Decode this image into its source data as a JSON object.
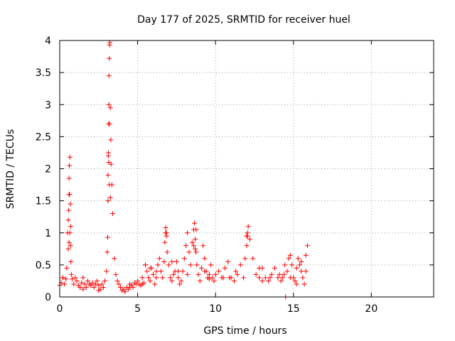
{
  "chart_data": {
    "type": "scatter",
    "title": "Day 177 of 2025, SRMTID for receiver huel",
    "xlabel": "GPS time / hours",
    "ylabel": "SRMTID / TECUs",
    "xlim": [
      0,
      24
    ],
    "ylim": [
      0,
      4
    ],
    "xticks": [
      0,
      5,
      10,
      15,
      20
    ],
    "xtick_labels": [
      "0",
      "5",
      "10",
      "15",
      "20"
    ],
    "yticks": [
      0,
      0.5,
      1,
      1.5,
      2,
      2.5,
      3,
      3.5,
      4
    ],
    "ytick_labels": [
      "0",
      "0.5",
      "1",
      "1.5",
      "2",
      "2.5",
      "3",
      "3.5",
      "4"
    ],
    "grid": true,
    "marker": "plus",
    "series": [
      {
        "name": "SRMTID",
        "color": "#ff0000",
        "x": [
          0.0,
          0.1,
          0.2,
          0.3,
          0.4,
          0.45,
          0.5,
          0.55,
          0.6,
          0.6,
          0.62,
          0.65,
          0.68,
          0.7,
          0.72,
          0.75,
          0.8,
          0.9,
          1.0,
          1.1,
          1.2,
          1.3,
          1.4,
          1.5,
          1.6,
          1.7,
          1.8,
          1.9,
          2.0,
          2.1,
          2.2,
          2.3,
          2.4,
          2.5,
          2.6,
          2.7,
          2.8,
          2.9,
          3.0,
          3.05,
          3.08,
          3.1,
          3.12,
          3.14,
          3.15,
          3.16,
          3.18,
          3.2,
          3.22,
          3.25,
          3.28,
          3.3,
          3.35,
          3.4,
          3.5,
          3.6,
          3.7,
          3.8,
          3.9,
          4.0,
          4.1,
          4.2,
          4.3,
          4.4,
          4.5,
          4.6,
          4.7,
          4.8,
          4.9,
          5.0,
          5.1,
          5.2,
          5.3,
          5.4,
          5.5,
          5.6,
          5.7,
          5.8,
          5.9,
          6.0,
          6.1,
          6.2,
          6.3,
          6.4,
          6.5,
          6.6,
          6.7,
          6.75,
          6.8,
          6.85,
          6.9,
          7.0,
          7.1,
          7.2,
          7.3,
          7.4,
          7.5,
          7.6,
          7.7,
          7.8,
          7.9,
          8.0,
          8.1,
          8.2,
          8.3,
          8.4,
          8.5,
          8.6,
          8.65,
          8.7,
          8.75,
          8.8,
          8.9,
          9.0,
          9.1,
          9.2,
          9.3,
          9.4,
          9.5,
          9.6,
          9.7,
          9.8,
          9.9,
          10.0,
          10.2,
          10.4,
          10.6,
          10.8,
          11.0,
          11.2,
          11.4,
          11.6,
          11.8,
          11.9,
          12.0,
          12.05,
          12.1,
          12.2,
          12.4,
          12.6,
          12.8,
          13.0,
          13.2,
          13.4,
          13.6,
          13.8,
          14.0,
          14.2,
          14.4,
          14.45,
          14.5,
          14.6,
          14.7,
          14.8,
          14.9,
          15.0,
          15.1,
          15.2,
          15.3,
          15.4,
          15.5,
          15.6,
          15.7,
          15.8,
          15.9,
          0.55,
          0.6,
          0.65,
          0.7,
          0.58,
          0.63,
          3.1,
          3.15,
          3.2,
          3.12,
          3.18,
          3.25,
          6.8,
          6.85,
          8.6,
          8.7,
          8.75,
          12.0,
          12.05,
          5.5,
          5.8,
          6.2,
          7.2,
          7.6,
          8.2,
          9.3,
          10.5,
          11.3,
          12.8,
          13.5,
          14.1,
          14.8,
          15.5,
          15.8,
          0.2,
          1.5,
          2.5,
          4.5,
          5.3,
          9.6,
          10.9,
          13.0,
          14.3,
          15.2
        ],
        "y": [
          0.18,
          0.22,
          0.3,
          0.2,
          0.28,
          0.45,
          1.0,
          1.2,
          1.6,
          1.85,
          2.05,
          2.18,
          1.45,
          0.8,
          0.55,
          0.35,
          0.28,
          0.2,
          0.3,
          0.25,
          0.18,
          0.15,
          0.22,
          0.3,
          0.2,
          0.15,
          0.25,
          0.2,
          0.18,
          0.22,
          0.15,
          0.2,
          0.25,
          0.18,
          0.12,
          0.2,
          0.15,
          0.25,
          0.4,
          0.7,
          0.93,
          1.5,
          2.2,
          2.7,
          3.0,
          3.45,
          3.72,
          3.93,
          3.97,
          2.95,
          2.45,
          2.07,
          1.75,
          1.3,
          0.6,
          0.35,
          0.25,
          0.2,
          0.15,
          0.1,
          0.12,
          0.08,
          0.15,
          0.12,
          0.2,
          0.18,
          0.15,
          0.22,
          0.2,
          0.25,
          0.2,
          0.18,
          0.3,
          0.22,
          0.5,
          0.4,
          0.3,
          0.25,
          0.45,
          0.35,
          0.2,
          0.3,
          0.5,
          0.6,
          0.4,
          0.3,
          0.55,
          0.85,
          1.08,
          0.95,
          0.7,
          0.5,
          0.3,
          0.25,
          0.35,
          0.4,
          0.55,
          0.3,
          0.2,
          0.25,
          0.4,
          0.6,
          0.8,
          1.0,
          0.7,
          0.5,
          0.85,
          1.05,
          1.15,
          0.9,
          0.7,
          0.5,
          0.35,
          0.25,
          0.45,
          0.8,
          0.6,
          0.4,
          0.3,
          0.35,
          0.5,
          0.3,
          0.25,
          0.35,
          0.4,
          0.3,
          0.45,
          0.55,
          0.3,
          0.25,
          0.35,
          0.5,
          0.3,
          0.6,
          0.8,
          0.95,
          1.1,
          0.9,
          0.6,
          0.35,
          0.3,
          0.45,
          0.3,
          0.25,
          0.35,
          0.45,
          0.3,
          0.25,
          0.35,
          0.5,
          0.0,
          0.4,
          0.6,
          0.65,
          0.5,
          0.3,
          0.25,
          0.45,
          0.6,
          0.5,
          0.4,
          0.3,
          0.2,
          0.65,
          0.8,
          0.75,
          0.85,
          1.0,
          1.1,
          1.35,
          1.6,
          1.9,
          2.1,
          2.7,
          2.25,
          1.75,
          1.55,
          1.0,
          1.0,
          0.8,
          0.75,
          1.05,
          0.95,
          1.0,
          0.5,
          0.45,
          0.4,
          0.55,
          0.4,
          0.35,
          0.4,
          0.3,
          0.4,
          0.45,
          0.3,
          0.35,
          0.3,
          0.55,
          0.4,
          0.3,
          0.12,
          0.1,
          0.15,
          0.2,
          0.28,
          0.3,
          0.25,
          0.3,
          0.2
        ]
      }
    ]
  }
}
